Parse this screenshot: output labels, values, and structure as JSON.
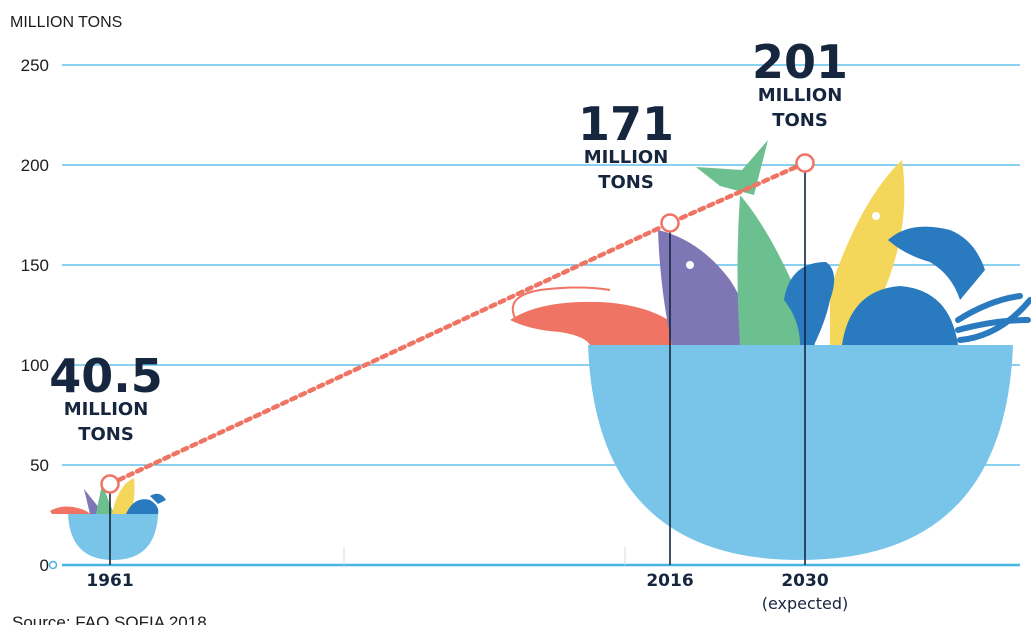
{
  "chart_data": {
    "type": "line",
    "ylabel": "MILLION TONS",
    "ylim": [
      0,
      250
    ],
    "yticks": [
      "0",
      "50",
      "100",
      "150",
      "200",
      "250"
    ],
    "grid": true,
    "series": [
      {
        "x": [
          1961,
          2016,
          2030
        ],
        "values": [
          40.5,
          171,
          201
        ]
      }
    ],
    "points": [
      {
        "x": 1961,
        "y": 40.5,
        "x_label": "1961",
        "x_sub": "",
        "value_label": "40.5",
        "unit_line1": "MILLION",
        "unit_line2": "TONS"
      },
      {
        "x": 2016,
        "y": 171,
        "x_label": "2016",
        "x_sub": "",
        "value_label": "171",
        "unit_line1": "MILLION",
        "unit_line2": "TONS"
      },
      {
        "x": 2030,
        "y": 201,
        "x_label": "2030",
        "x_sub": "(expected)",
        "value_label": "201",
        "unit_line1": "MILLION",
        "unit_line2": "TONS"
      }
    ],
    "source": "Source: FAO SOFIA 2018"
  },
  "colors": {
    "grid": "#45b5e6",
    "line": "#ef7463",
    "bowl": "#79c5ea",
    "text": "#15263e",
    "purple_fish": "#7f76b6",
    "green_fish": "#6cbf8e",
    "yellow_fish": "#f4d65b",
    "crab": "#2a7ac0",
    "shrimp": "#ef7463"
  }
}
